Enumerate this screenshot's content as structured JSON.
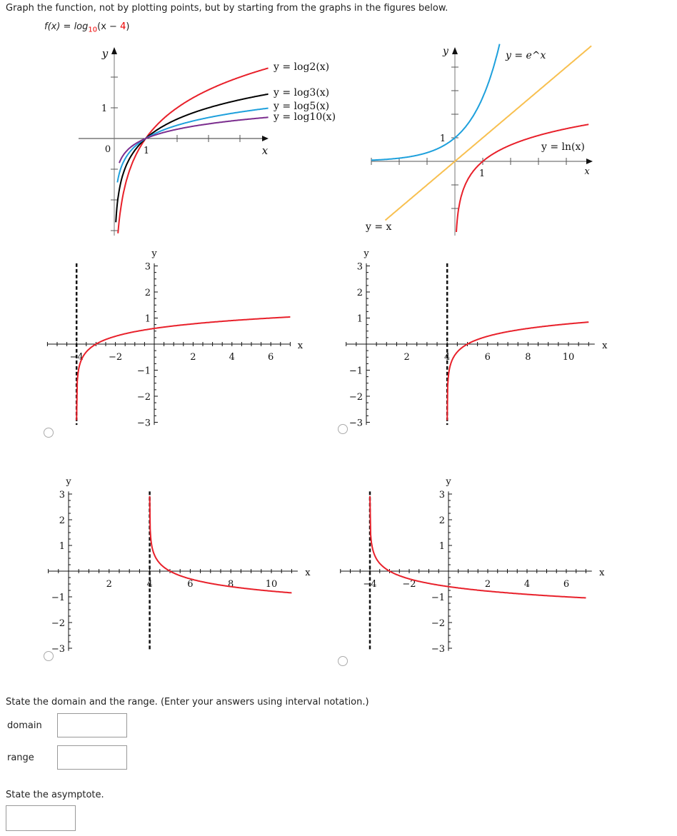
{
  "instruction": "Graph the function, not by plotting points, but by starting from the graphs in the figures below.",
  "function": {
    "lhs": "f(x) = log",
    "base": "10",
    "arg_open": "(x − ",
    "shift": "4",
    "arg_close": ")"
  },
  "reference_graphs": [
    {
      "axis_labels": {
        "x": "x",
        "y": "y"
      },
      "tick_labels": {
        "zero": "0",
        "one_x": "1",
        "one_y": "1"
      },
      "curves": [
        {
          "label": "y = log2(x)",
          "base": 2,
          "color": "#e8202a"
        },
        {
          "label": "y = log3(x)",
          "base": 3,
          "color": "#000000"
        },
        {
          "label": "y = log5(x)",
          "base": 5,
          "color": "#1ea0dc"
        },
        {
          "label": "y = log10(x)",
          "base": 10,
          "color": "#7b2d8e"
        }
      ]
    },
    {
      "axis_labels": {
        "x": "x",
        "y": "y"
      },
      "tick_labels": {
        "one_x": "1",
        "one_y": "1"
      },
      "curves": [
        {
          "label": "y = e^x",
          "color": "#1ea0dc"
        },
        {
          "label": "y = ln(x)",
          "color": "#e8202a"
        },
        {
          "label": "y = x",
          "color": "#f8c050"
        }
      ]
    }
  ],
  "options": [
    {
      "func": "log10(x+4)",
      "asymptote": -4,
      "xticks": [
        -4,
        -2,
        2,
        4,
        6
      ],
      "yticks": [
        3,
        2,
        1,
        -1,
        -2,
        -3
      ],
      "xlabel": "x",
      "ylabel": "y"
    },
    {
      "func": "log10(x-4)",
      "asymptote": 4,
      "xticks": [
        2,
        4,
        6,
        8,
        10
      ],
      "yticks": [
        3,
        2,
        1,
        -1,
        -2,
        -3
      ],
      "xlabel": "x",
      "ylabel": "y"
    },
    {
      "func": "-log10(x-4)",
      "asymptote": 4,
      "xticks": [
        2,
        4,
        6,
        8,
        10
      ],
      "yticks": [
        3,
        2,
        1,
        -1,
        -2,
        -3
      ],
      "xlabel": "x",
      "ylabel": "y"
    },
    {
      "func": "-log10(x+4)",
      "asymptote": -4,
      "xticks": [
        -4,
        -2,
        2,
        4,
        6
      ],
      "yticks": [
        3,
        2,
        1,
        -1,
        -2,
        -3
      ],
      "xlabel": "x",
      "ylabel": "y"
    }
  ],
  "curve_color": "#e8202a",
  "domain_range_prompt": "State the domain and the range. (Enter your answers using interval notation.)",
  "domain_label": "domain",
  "domain_value": "",
  "range_label": "range",
  "range_value": "",
  "asymptote_prompt": "State the asymptote.",
  "asymptote_value": ""
}
